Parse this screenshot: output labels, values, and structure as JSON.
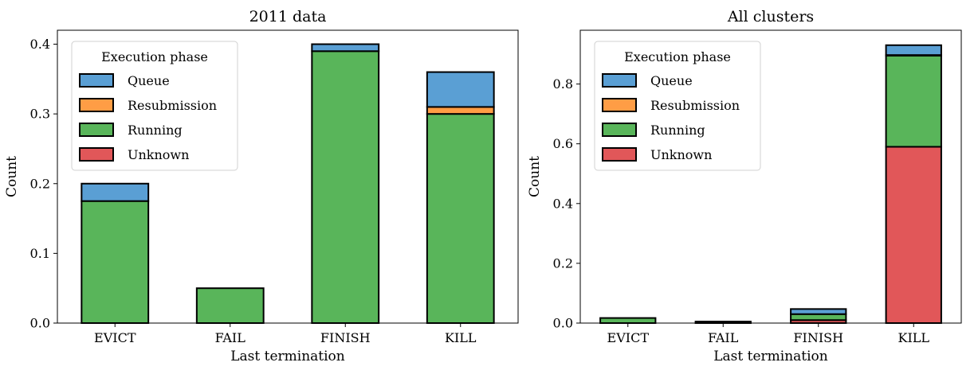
{
  "chart_data": [
    {
      "type": "bar",
      "stacked": true,
      "title": "2011 data",
      "xlabel": "Last termination",
      "ylabel": "Count",
      "categories": [
        "EVICT",
        "FAIL",
        "FINISH",
        "KILL"
      ],
      "ylim": [
        0,
        0.42
      ],
      "yticks": [
        0.0,
        0.1,
        0.2,
        0.3,
        0.4
      ],
      "ytick_labels": [
        "0.0",
        "0.1",
        "0.2",
        "0.3",
        "0.4"
      ],
      "grid": false,
      "legend": {
        "title": "Execution phase",
        "placement": "top-left"
      },
      "series": [
        {
          "name": "Unknown",
          "color": "#e15759",
          "values": [
            0,
            0,
            0,
            0
          ]
        },
        {
          "name": "Running",
          "color": "#59b55a",
          "values": [
            0.175,
            0.05,
            0.39,
            0.3
          ]
        },
        {
          "name": "Resubmission",
          "color": "#ff9d45",
          "values": [
            0,
            0,
            0,
            0.01
          ]
        },
        {
          "name": "Queue",
          "color": "#5a9fd4",
          "values": [
            0.025,
            0,
            0.01,
            0.05
          ]
        }
      ]
    },
    {
      "type": "bar",
      "stacked": true,
      "title": "All clusters",
      "xlabel": "Last termination",
      "ylabel": "Count",
      "categories": [
        "EVICT",
        "FAIL",
        "FINISH",
        "KILL"
      ],
      "ylim": [
        0,
        0.98
      ],
      "yticks": [
        0.0,
        0.2,
        0.4,
        0.6,
        0.8
      ],
      "ytick_labels": [
        "0.0",
        "0.2",
        "0.4",
        "0.6",
        "0.8"
      ],
      "grid": false,
      "legend": {
        "title": "Execution phase",
        "placement": "top-left"
      },
      "series": [
        {
          "name": "Unknown",
          "color": "#e15759",
          "values": [
            0,
            0,
            0.01,
            0.59
          ]
        },
        {
          "name": "Running",
          "color": "#59b55a",
          "values": [
            0.017,
            0.005,
            0.02,
            0.305
          ]
        },
        {
          "name": "Resubmission",
          "color": "#ff9d45",
          "values": [
            0,
            0,
            0,
            0.002
          ]
        },
        {
          "name": "Queue",
          "color": "#5a9fd4",
          "values": [
            0,
            0,
            0.017,
            0.033
          ]
        }
      ]
    }
  ],
  "legend_order": [
    "Queue",
    "Resubmission",
    "Running",
    "Unknown"
  ]
}
